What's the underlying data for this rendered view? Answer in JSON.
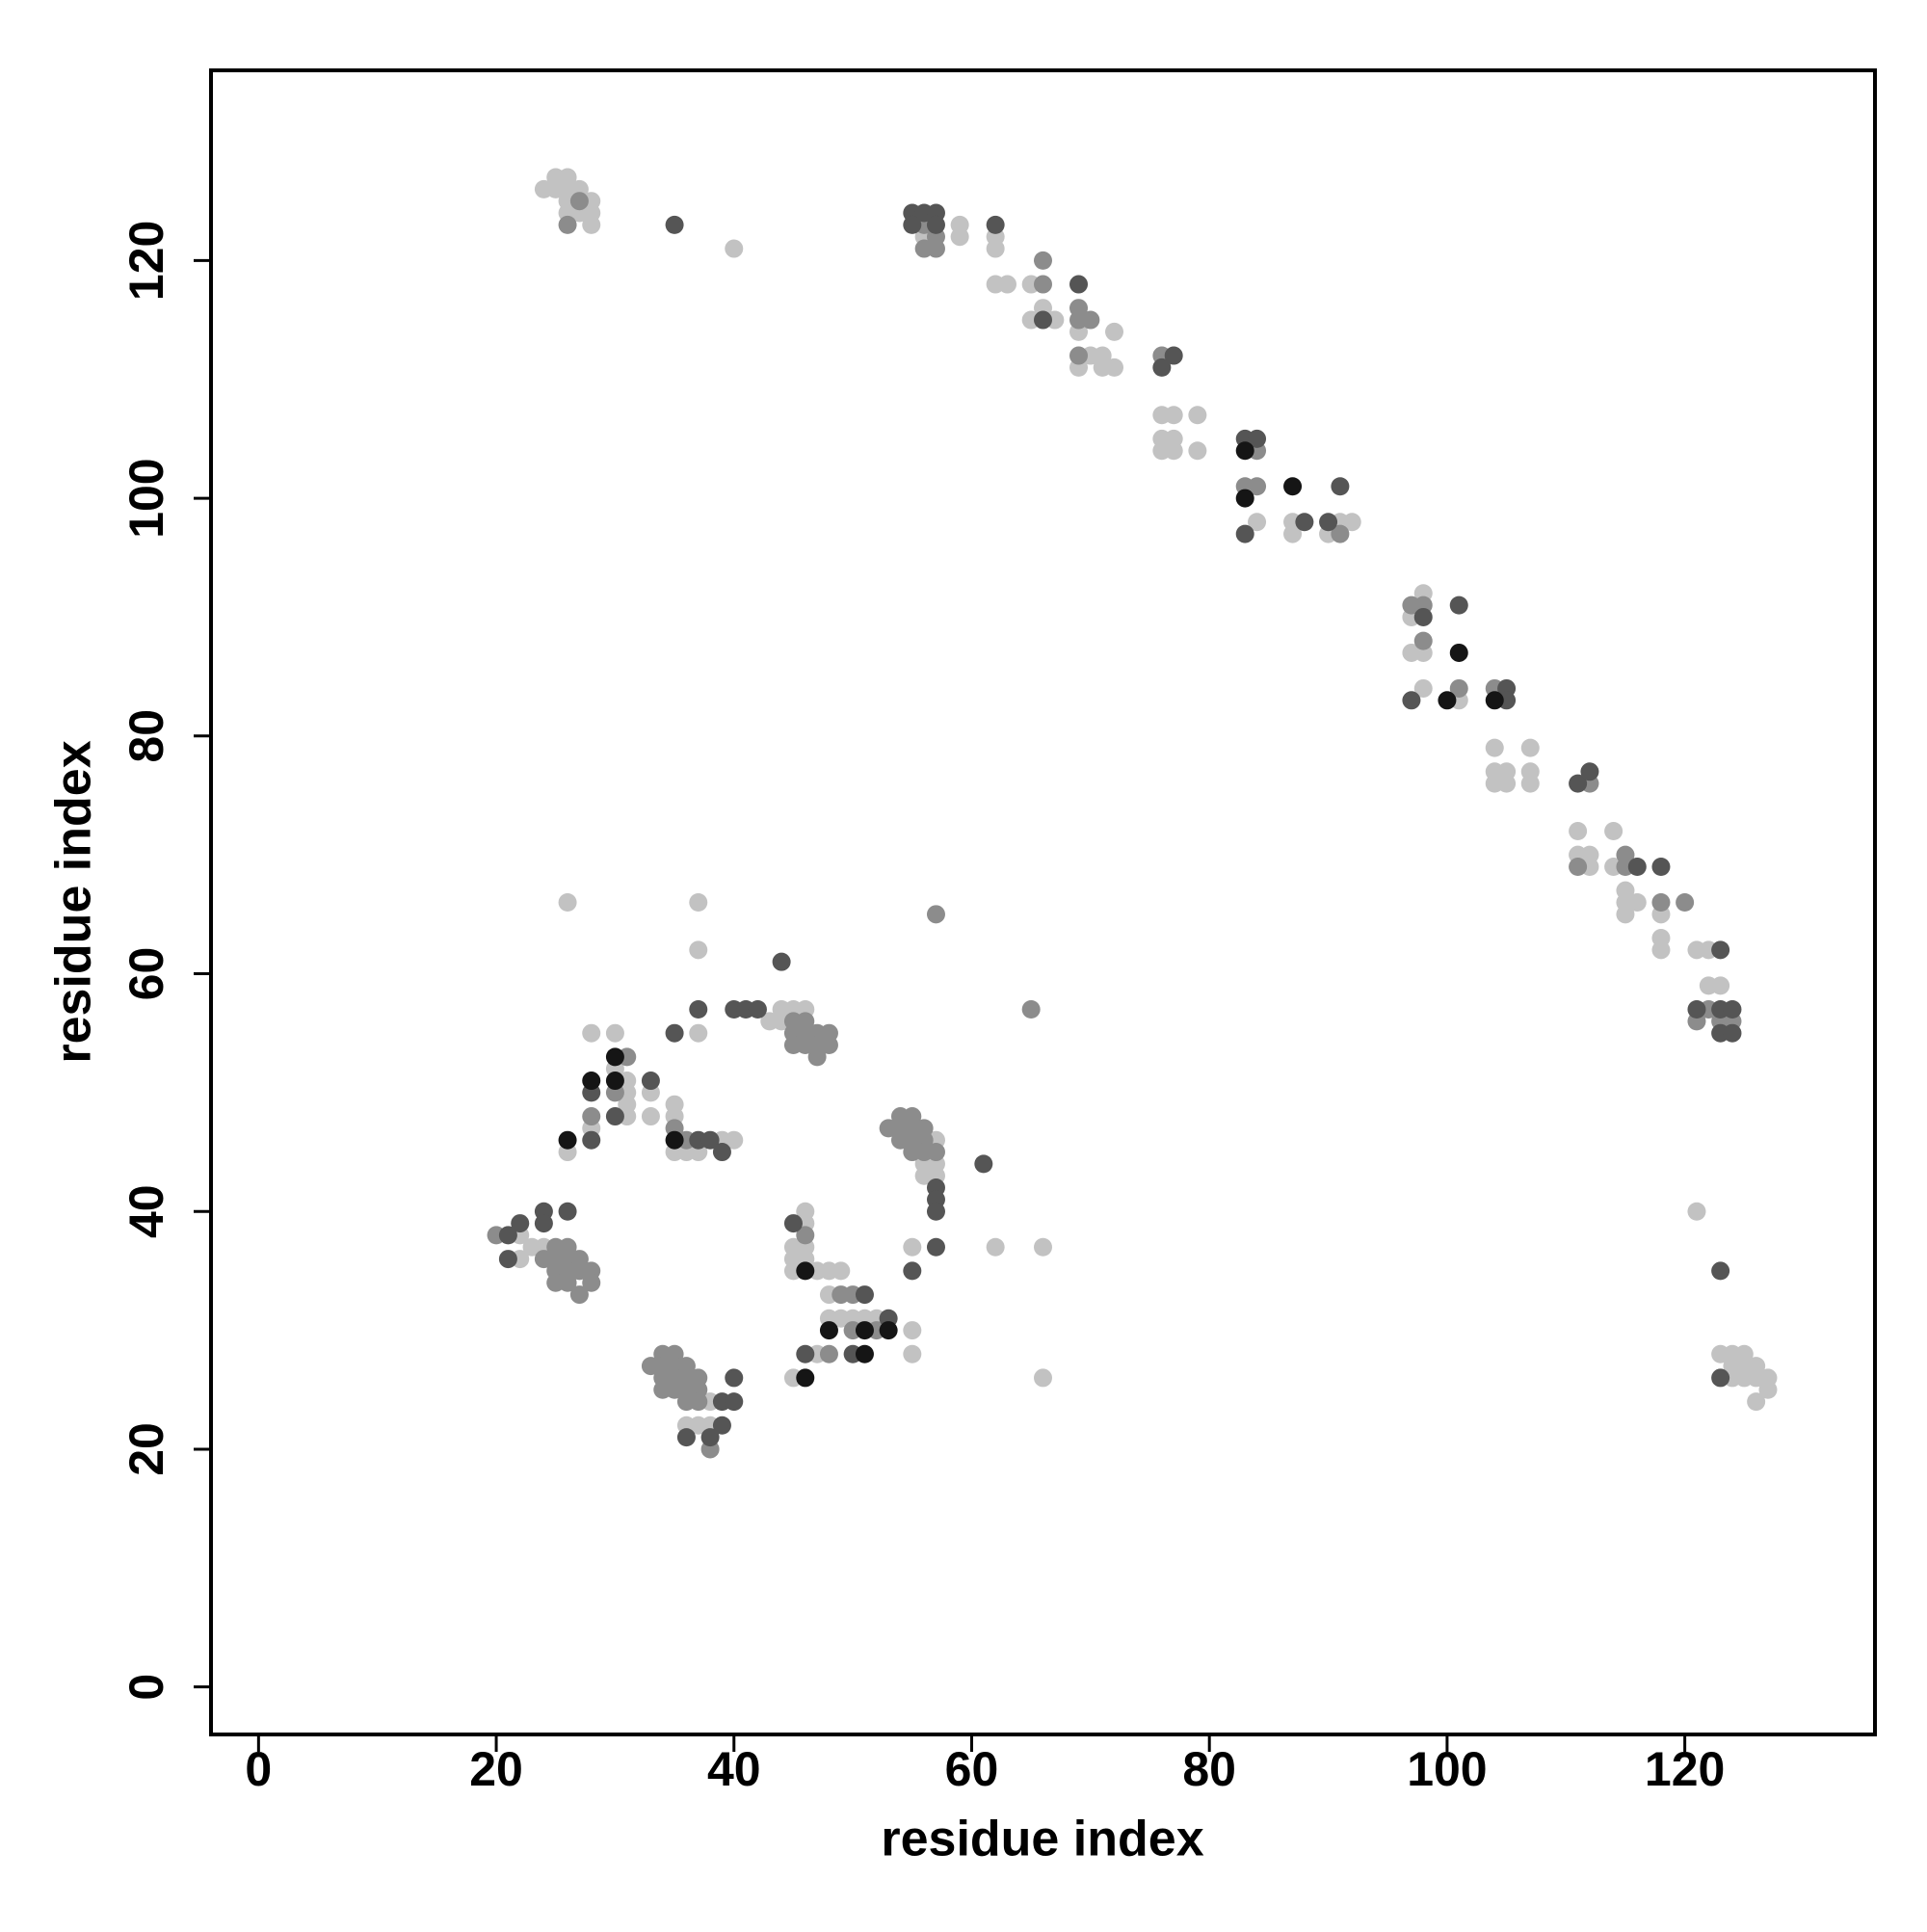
{
  "chart_data": {
    "type": "scatter",
    "x_label": "residue index",
    "y_label": "residue index",
    "xlim": [
      -4,
      136
    ],
    "ylim": [
      -4,
      136
    ],
    "xticks": [
      0,
      20,
      40,
      60,
      80,
      100,
      120
    ],
    "yticks": [
      0,
      20,
      40,
      60,
      80,
      100,
      120
    ],
    "grid": false,
    "series": [
      {
        "color": "#c2c2c2",
        "x": [
          24,
          25,
          26,
          25,
          26,
          27,
          26,
          28,
          26,
          27,
          28,
          28,
          40,
          56,
          59,
          59,
          62,
          62,
          62,
          63,
          65,
          66,
          65,
          67,
          69,
          72,
          70,
          71,
          69,
          71,
          72,
          76,
          77,
          79,
          76,
          77,
          76,
          77,
          79,
          84,
          87,
          91,
          92,
          87,
          90,
          98,
          97,
          97,
          98,
          98,
          101,
          104,
          107,
          104,
          105,
          107,
          104,
          105,
          107,
          111,
          114,
          111,
          112,
          112,
          114,
          115,
          115,
          116,
          115,
          118,
          118,
          118,
          121,
          122,
          122,
          123,
          121,
          123,
          124,
          125,
          124,
          125,
          126,
          126,
          127,
          127,
          126,
          124,
          125,
          26,
          37,
          37,
          43,
          44,
          45,
          46,
          44,
          28,
          30,
          37,
          30,
          31,
          31,
          33,
          31,
          35,
          31,
          33,
          35,
          28,
          39,
          40,
          26,
          35,
          36,
          37,
          57,
          56,
          57,
          56,
          57,
          55,
          62,
          66,
          55,
          55,
          66,
          22,
          22,
          24,
          23,
          46,
          46,
          45,
          46,
          45,
          46,
          45,
          47,
          48,
          49,
          48,
          48,
          49,
          50,
          51,
          52,
          47,
          45,
          38,
          36,
          37,
          38
        ],
        "values": [
          126,
          127,
          127,
          126,
          126,
          126,
          125,
          125,
          124,
          124,
          124,
          123,
          121,
          122,
          123,
          122,
          122,
          121,
          118,
          118,
          118,
          116,
          115,
          115,
          114,
          114,
          112,
          112,
          111,
          111,
          111,
          107,
          107,
          107,
          105,
          105,
          104,
          104,
          104,
          98,
          98,
          98,
          98,
          97,
          97,
          92,
          90,
          87,
          87,
          84,
          83,
          79,
          79,
          77,
          77,
          77,
          76,
          76,
          76,
          72,
          72,
          70,
          70,
          69,
          69,
          67,
          66,
          66,
          65,
          65,
          63,
          62,
          62,
          62,
          59,
          59,
          40,
          28,
          28,
          28,
          26,
          27,
          27,
          26,
          26,
          25,
          24,
          27,
          26,
          66,
          66,
          62,
          56,
          57,
          57,
          57,
          56,
          55,
          55,
          55,
          52,
          51,
          50,
          50,
          49,
          49,
          48,
          48,
          48,
          47,
          46,
          46,
          45,
          45,
          45,
          45,
          46,
          44,
          44,
          43,
          43,
          37,
          37,
          37,
          30,
          28,
          26,
          38,
          36,
          37,
          37,
          40,
          39,
          37,
          37,
          36,
          36,
          35,
          35,
          35,
          35,
          33,
          31,
          31,
          31,
          31,
          31,
          28,
          26,
          24,
          22,
          22,
          22
        ]
      },
      {
        "color": "#8c8c8c",
        "x": [
          27,
          26,
          56,
          57,
          56,
          57,
          66,
          66,
          69,
          69,
          70,
          69,
          76,
          84,
          83,
          84,
          91,
          97,
          98,
          98,
          101,
          104,
          112,
          115,
          111,
          115,
          118,
          120,
          122,
          121,
          123,
          124,
          57,
          65,
          45,
          45,
          46,
          45,
          46,
          47,
          48,
          47,
          48,
          47,
          46,
          31,
          30,
          28,
          35,
          36,
          53,
          54,
          55,
          54,
          55,
          56,
          54,
          55,
          56,
          55,
          56,
          57,
          20,
          25,
          26,
          24,
          25,
          26,
          27,
          25,
          26,
          27,
          28,
          25,
          26,
          28,
          27,
          46,
          49,
          50,
          50,
          52,
          48,
          33,
          34,
          35,
          34,
          35,
          36,
          34,
          35,
          36,
          37,
          34,
          35,
          36,
          37,
          36,
          37,
          38
        ],
        "values": [
          125,
          123,
          123,
          122,
          121,
          121,
          120,
          118,
          116,
          115,
          115,
          112,
          112,
          104,
          101,
          101,
          97,
          91,
          91,
          88,
          84,
          84,
          76,
          70,
          69,
          69,
          66,
          66,
          57,
          56,
          56,
          56,
          65,
          57,
          56,
          55,
          55,
          54,
          54,
          55,
          55,
          54,
          54,
          53,
          56,
          53,
          50,
          48,
          47,
          46,
          47,
          48,
          48,
          47,
          47,
          47,
          46,
          46,
          46,
          45,
          45,
          45,
          38,
          37,
          37,
          36,
          36,
          36,
          36,
          35,
          35,
          35,
          35,
          34,
          34,
          34,
          33,
          38,
          33,
          33,
          30,
          30,
          28,
          27,
          28,
          28,
          27,
          27,
          27,
          26,
          26,
          26,
          26,
          25,
          25,
          25,
          25,
          24,
          24,
          20
        ]
      },
      {
        "color": "#555555",
        "x": [
          35,
          55,
          56,
          57,
          55,
          57,
          62,
          66,
          69,
          77,
          76,
          83,
          84,
          83,
          88,
          90,
          91,
          98,
          101,
          97,
          105,
          105,
          111,
          112,
          116,
          118,
          123,
          121,
          123,
          124,
          123,
          124,
          123,
          123,
          44,
          37,
          40,
          41,
          42,
          35,
          33,
          28,
          30,
          28,
          37,
          38,
          39,
          61,
          57,
          57,
          57,
          57,
          55,
          24,
          26,
          21,
          22,
          24,
          21,
          45,
          51,
          53,
          46,
          50,
          40,
          39,
          40,
          39,
          36,
          38
        ],
        "values": [
          123,
          124,
          124,
          124,
          123,
          123,
          123,
          115,
          118,
          112,
          111,
          105,
          105,
          97,
          98,
          98,
          101,
          90,
          91,
          83,
          84,
          83,
          76,
          77,
          69,
          69,
          62,
          57,
          57,
          57,
          55,
          55,
          35,
          26,
          61,
          57,
          57,
          57,
          57,
          55,
          51,
          50,
          48,
          46,
          46,
          46,
          45,
          44,
          42,
          41,
          40,
          37,
          35,
          40,
          40,
          38,
          39,
          39,
          36,
          39,
          33,
          31,
          28,
          28,
          26,
          24,
          24,
          22,
          21,
          21
        ]
      },
      {
        "color": "#151515",
        "x": [
          83,
          83,
          87,
          101,
          100,
          104,
          30,
          28,
          30,
          26,
          35,
          46,
          48,
          51,
          53,
          51,
          46
        ],
        "values": [
          104,
          100,
          101,
          87,
          83,
          83,
          53,
          51,
          51,
          46,
          46,
          35,
          30,
          30,
          30,
          28,
          26
        ]
      }
    ]
  }
}
